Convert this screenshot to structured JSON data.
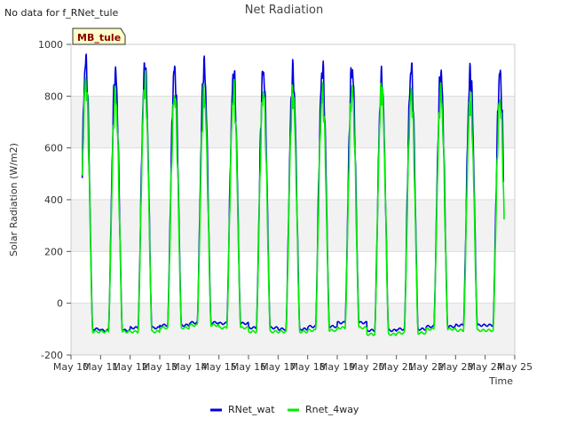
{
  "chart_data": {
    "type": "line",
    "title": "Net Radiation",
    "corner_note": "No data for f_RNet_tule",
    "site_badge": "MB_tule",
    "xlabel": "Time",
    "ylabel": "Solar Radiation (W/m2)",
    "ylim": [
      -200,
      1000
    ],
    "yticks": [
      -200,
      0,
      200,
      400,
      600,
      800,
      1000
    ],
    "xlim": [
      10,
      25
    ],
    "xticks": [
      10,
      11,
      12,
      13,
      14,
      15,
      16,
      17,
      18,
      19,
      20,
      21,
      22,
      23,
      24,
      25
    ],
    "xtick_labels": [
      "May 10",
      "May 11",
      "May 12",
      "May 13",
      "May 14",
      "May 15",
      "May 16",
      "May 17",
      "May 18",
      "May 19",
      "May 20",
      "May 21",
      "May 22",
      "May 23",
      "May 24",
      "May 25"
    ],
    "grid": true,
    "shaded_bands": true,
    "legend_position": "bottom-center",
    "days": [
      10.5,
      11.5,
      12.5,
      13.5,
      14.5,
      15.5,
      16.5,
      17.5,
      18.5,
      19.5,
      20.5,
      21.5,
      22.5,
      23.5
    ],
    "series": [
      {
        "name": "RNet_wat",
        "color": "#0000dd",
        "start": 10.38,
        "end": 24.62,
        "daily_peak": [
          930,
          885,
          905,
          900,
          910,
          880,
          895,
          885,
          905,
          905,
          860,
          905,
          885,
          885
        ],
        "night_min": [
          -100,
          -105,
          -95,
          -85,
          -75,
          -78,
          -95,
          -100,
          -90,
          -75,
          -105,
          -100,
          -90,
          -85
        ]
      },
      {
        "name": "Rnet_4way",
        "color": "#00ee00",
        "start": 10.38,
        "end": 24.65,
        "daily_peak": [
          850,
          800,
          850,
          800,
          800,
          815,
          815,
          805,
          810,
          820,
          825,
          805,
          810,
          780
        ],
        "night_min": [
          -110,
          -110,
          -110,
          -95,
          -85,
          -95,
          -110,
          -110,
          -105,
          -95,
          -120,
          -115,
          -100,
          -105
        ]
      }
    ]
  }
}
